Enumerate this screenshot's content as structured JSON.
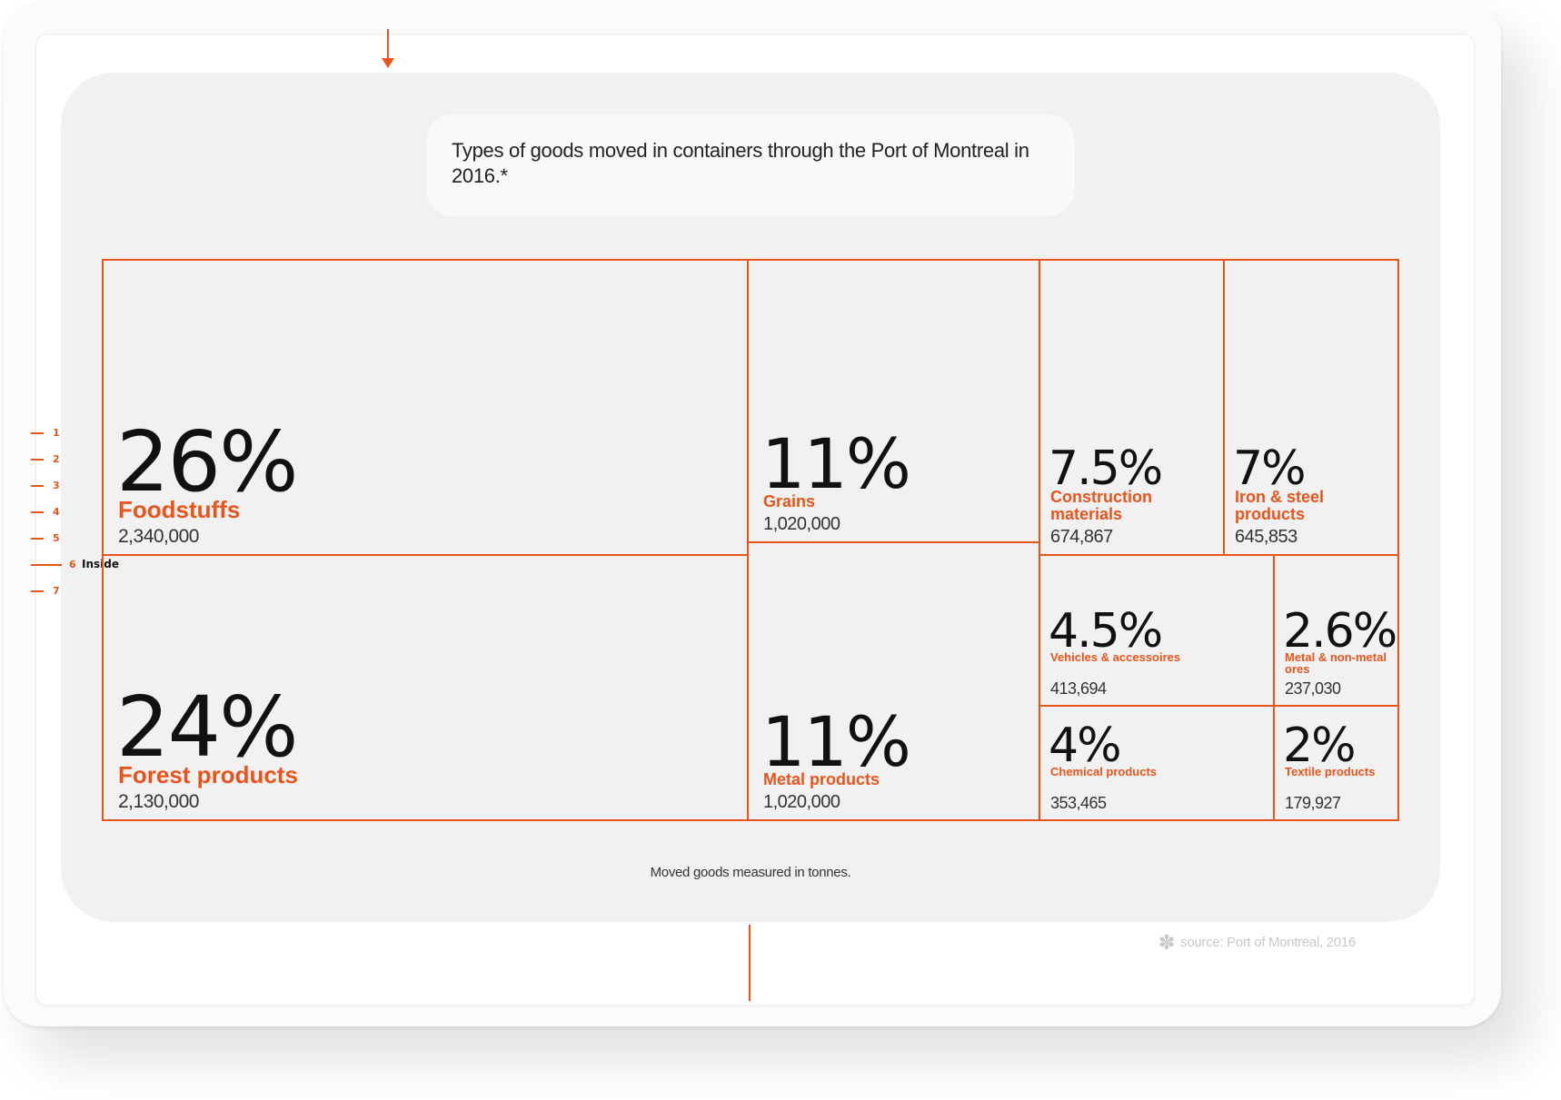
{
  "title": "Types of goods moved in containers through the Port of Montreal in 2016.*",
  "footnote": "Moved goods measured in tonnes.",
  "source": "source: Port of Montreal, 2016",
  "source_icon": "asterisk-icon",
  "accent_color": "#e8541a",
  "ruler": {
    "marks": [
      "1",
      "2",
      "3",
      "4",
      "5",
      "6",
      "7"
    ],
    "active_mark": "6",
    "active_label": "Inside"
  },
  "chart_data": {
    "type": "treemap",
    "title": "Types of goods moved in containers through the Port of Montreal in 2016.*",
    "unit": "tonnes",
    "items": [
      {
        "name": "Foodstuffs",
        "percent": 26,
        "percent_label": "26%",
        "value": 2340000,
        "value_label": "2,340,000"
      },
      {
        "name": "Forest products",
        "percent": 24,
        "percent_label": "24%",
        "value": 2130000,
        "value_label": "2,130,000"
      },
      {
        "name": "Grains",
        "percent": 11,
        "percent_label": "11%",
        "value": 1020000,
        "value_label": "1,020,000"
      },
      {
        "name": "Metal products",
        "percent": 11,
        "percent_label": "11%",
        "value": 1020000,
        "value_label": "1,020,000"
      },
      {
        "name": "Construction materials",
        "percent": 7.5,
        "percent_label": "7.5%",
        "value": 674867,
        "value_label": "674,867"
      },
      {
        "name": "Iron & steel products",
        "percent": 7,
        "percent_label": "7%",
        "value": 645853,
        "value_label": "645,853"
      },
      {
        "name": "Vehicles & accessoires",
        "percent": 4.5,
        "percent_label": "4.5%",
        "value": 413694,
        "value_label": "413,694"
      },
      {
        "name": "Metal & non-metal ores",
        "percent": 2.6,
        "percent_label": "2.6%",
        "value": 237030,
        "value_label": "237,030"
      },
      {
        "name": "Chemical products",
        "percent": 4,
        "percent_label": "4%",
        "value": 353465,
        "value_label": "353,465"
      },
      {
        "name": "Textile products",
        "percent": 2,
        "percent_label": "2%",
        "value": 179927,
        "value_label": "179,927"
      }
    ]
  }
}
